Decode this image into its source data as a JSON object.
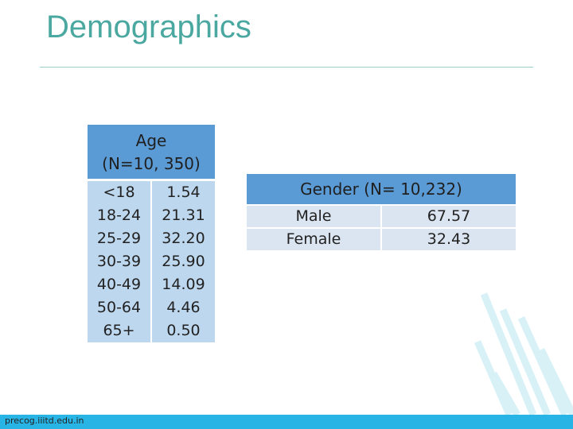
{
  "header": {
    "title": "Demographics"
  },
  "age_table": {
    "header": [
      "Age",
      "(N=10, 350)"
    ],
    "rows": [
      [
        "<18",
        "1.54"
      ],
      [
        "18-24",
        "21.31"
      ],
      [
        "25-29",
        "32.20"
      ],
      [
        "30-39",
        "25.90"
      ],
      [
        "40-49",
        "14.09"
      ],
      [
        "50-64",
        "4.46"
      ],
      [
        "65+",
        "0.50"
      ]
    ]
  },
  "gender_table": {
    "header": "Gender (N= 10,232)",
    "rows": [
      [
        "Male",
        "67.57"
      ],
      [
        "Female",
        "32.43"
      ]
    ]
  },
  "footer": {
    "text": "precog.iiitd.edu.in"
  }
}
